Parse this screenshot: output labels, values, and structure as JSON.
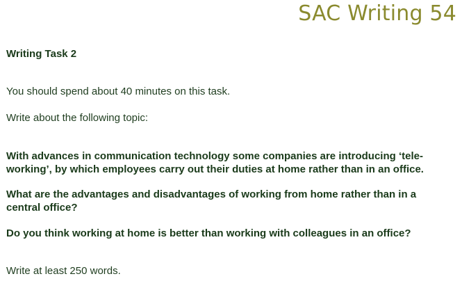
{
  "document": {
    "title": "SAC Writing 54",
    "task_heading": "Writing Task 2",
    "time_instruction": "You should spend about 40 minutes on this task.",
    "topic_instruction": "Write about the following topic:",
    "prompt_intro": "With advances in communication technology some companies are introducing ‘tele-working’, by which employees carry out their duties at home rather than in an office.",
    "question_1": "What are the advantages and disadvantages of working from home rather than in a central office?",
    "question_2": "Do you think working at home is better than working with colleagues in an office?",
    "word_count_instruction": "Write at least 250 words."
  },
  "colors": {
    "title": "#8a8a2e",
    "body_text": "#1f3d1f"
  }
}
